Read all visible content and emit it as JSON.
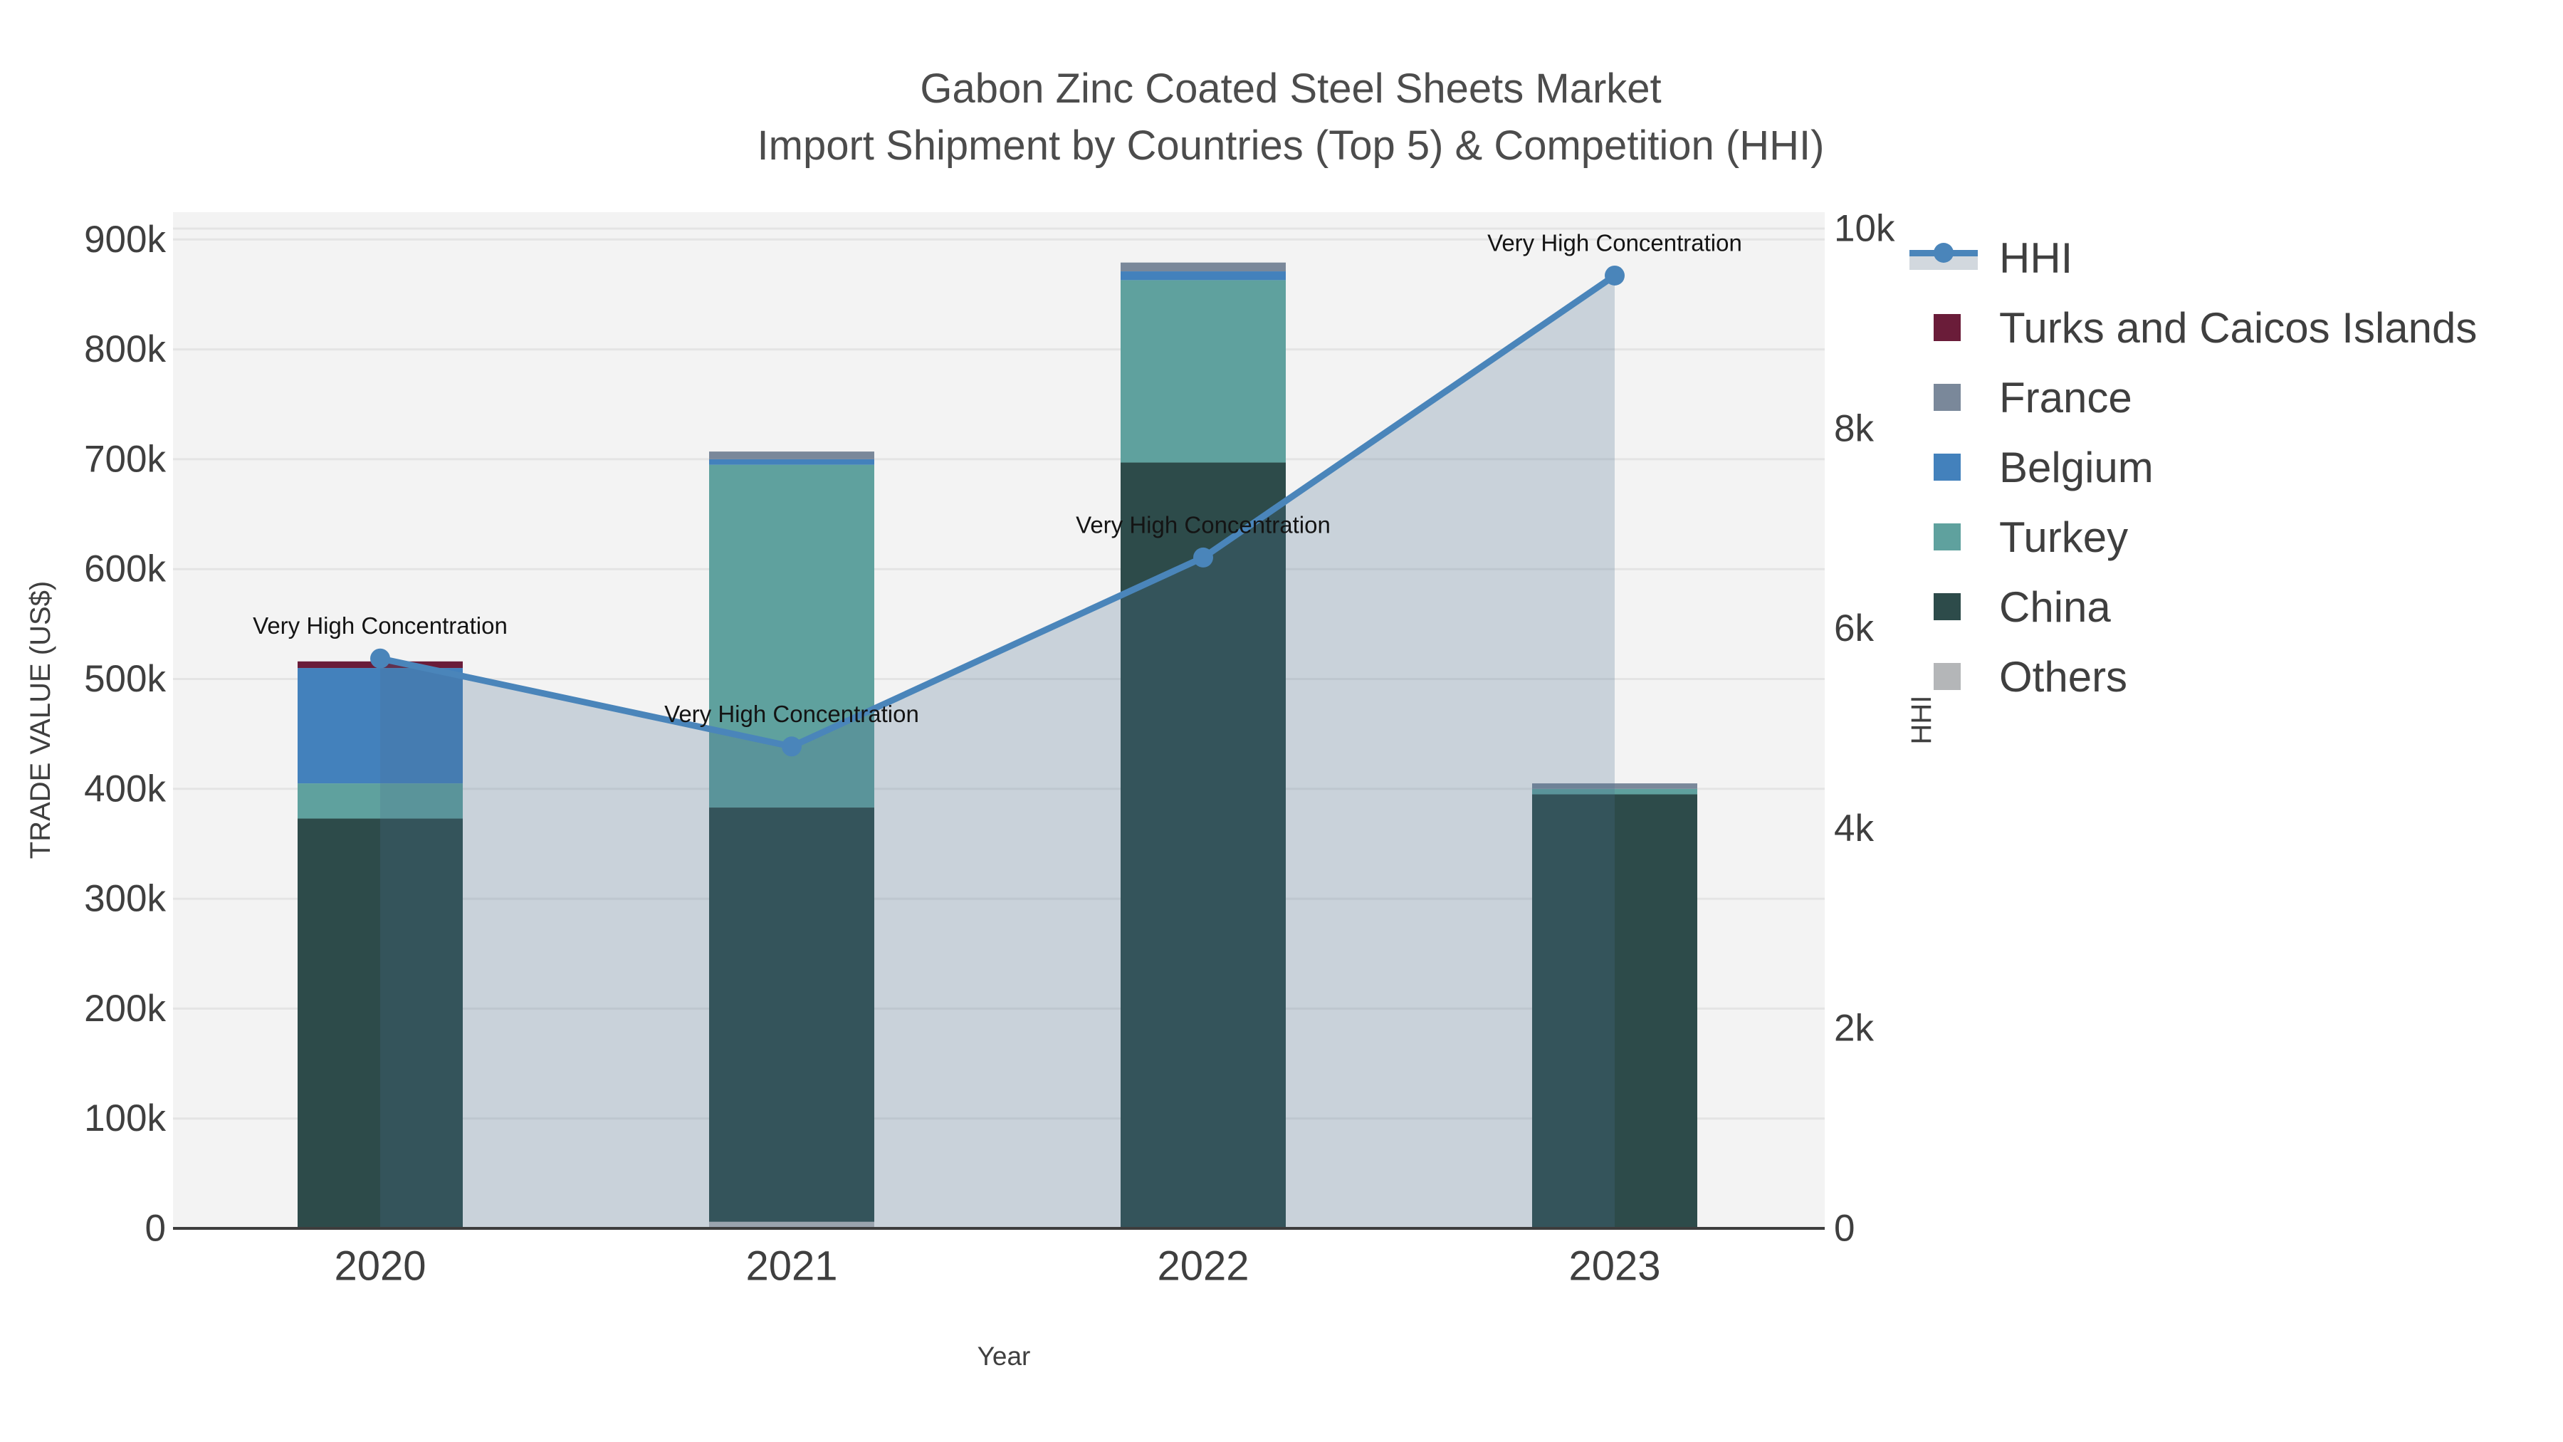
{
  "title": {
    "line1": "Gabon Zinc Coated Steel Sheets Market",
    "line2": "Import Shipment by Countries (Top 5) & Competition (HHI)"
  },
  "axes": {
    "x": {
      "title": "Year",
      "ticks": [
        "2020",
        "2021",
        "2022",
        "2023"
      ]
    },
    "y_left": {
      "title": "TRADE VALUE (US$)",
      "ticks": [
        "0",
        "100k",
        "200k",
        "300k",
        "400k",
        "500k",
        "600k",
        "700k",
        "800k",
        "900k"
      ],
      "range": [
        0,
        900000
      ]
    },
    "y_right": {
      "title": "HHI",
      "ticks": [
        "0",
        "2k",
        "4k",
        "6k",
        "8k",
        "10k"
      ],
      "range": [
        0,
        10000
      ]
    }
  },
  "legend": {
    "items": [
      {
        "label": "HHI",
        "type": "line",
        "color": "#4a85ba"
      },
      {
        "label": "Turks and Caicos Islands",
        "type": "swatch",
        "color": "#6a1c39"
      },
      {
        "label": "France",
        "type": "swatch",
        "color": "#7a889a"
      },
      {
        "label": "Belgium",
        "type": "swatch",
        "color": "#4381bc"
      },
      {
        "label": "Turkey",
        "type": "swatch",
        "color": "#5fa19e"
      },
      {
        "label": "China",
        "type": "swatch",
        "color": "#2d4b4a"
      },
      {
        "label": "Others",
        "type": "swatch",
        "color": "#b4b6b8"
      }
    ]
  },
  "chart_data": {
    "type": "combo-stacked-bar-line",
    "categories": [
      "2020",
      "2021",
      "2022",
      "2023"
    ],
    "bar_series": [
      {
        "name": "Others",
        "color": "#b4b6b8",
        "values": [
          0,
          6000,
          0,
          0
        ]
      },
      {
        "name": "China",
        "color": "#2d4b4a",
        "values": [
          373000,
          377000,
          697000,
          395000
        ]
      },
      {
        "name": "Turkey",
        "color": "#5fa19e",
        "values": [
          32000,
          312000,
          166000,
          5000
        ]
      },
      {
        "name": "Belgium",
        "color": "#4381bc",
        "values": [
          105000,
          5000,
          8000,
          0
        ]
      },
      {
        "name": "France",
        "color": "#7a889a",
        "values": [
          0,
          7000,
          8000,
          5000
        ]
      },
      {
        "name": "Turks and Caicos Islands",
        "color": "#6a1c39",
        "values": [
          6000,
          0,
          0,
          0
        ]
      }
    ],
    "bar_totals": [
      516000,
      707000,
      879000,
      405000
    ],
    "line_series": {
      "name": "HHI",
      "axis": "right",
      "color": "#4a85ba",
      "values": [
        5700,
        4820,
        6710,
        9530
      ]
    },
    "annotations": [
      {
        "x": "2020",
        "text": "Very High Concentration"
      },
      {
        "x": "2021",
        "text": "Very High Concentration"
      },
      {
        "x": "2022",
        "text": "Very High Concentration"
      },
      {
        "x": "2023",
        "text": "Very High Concentration"
      }
    ],
    "ylim_left": [
      0,
      900000
    ],
    "ylim_right": [
      0,
      10000
    ],
    "grid": true,
    "legend_position": "right",
    "plot_background": "#f3f3f3",
    "gridline_color": "#e4e4e4",
    "axisline_color": "#3d3d3d",
    "area_fill": "rgba(74,110,144,0.25)"
  }
}
